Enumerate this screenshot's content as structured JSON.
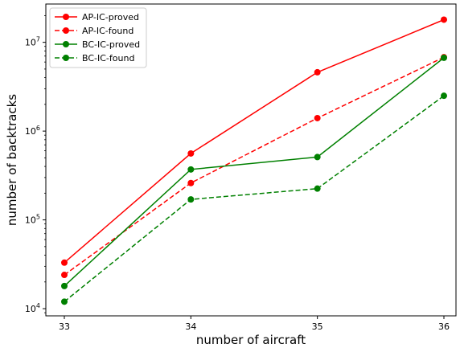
{
  "chart_data": {
    "type": "line",
    "xlabel": "number of aircraft",
    "ylabel": "number of backtracks",
    "yscale": "log",
    "grid": false,
    "legend_position": "top-left",
    "categories": [
      33,
      34,
      35,
      36
    ],
    "x_tick_labels": [
      "33",
      "34",
      "35",
      "36"
    ],
    "y_ticks": [
      {
        "value": 10000,
        "base": "10",
        "exp": "4"
      },
      {
        "value": 100000,
        "base": "10",
        "exp": "5"
      },
      {
        "value": 1000000,
        "base": "10",
        "exp": "6"
      },
      {
        "value": 10000000,
        "base": "10",
        "exp": "7"
      }
    ],
    "series": [
      {
        "name": "AP-IC-proved",
        "color": "#ff0000",
        "dashed": false,
        "values": [
          33000,
          560000,
          4600000,
          18000000
        ]
      },
      {
        "name": "AP-IC-found",
        "color": "#ff0000",
        "dashed": true,
        "values": [
          24000,
          260000,
          1400000,
          6800000
        ]
      },
      {
        "name": "BC-IC-proved",
        "color": "#008000",
        "dashed": false,
        "values": [
          18000,
          370000,
          510000,
          6700000
        ]
      },
      {
        "name": "BC-IC-found",
        "color": "#008000",
        "dashed": true,
        "values": [
          12000,
          170000,
          225000,
          2500000
        ]
      }
    ]
  }
}
